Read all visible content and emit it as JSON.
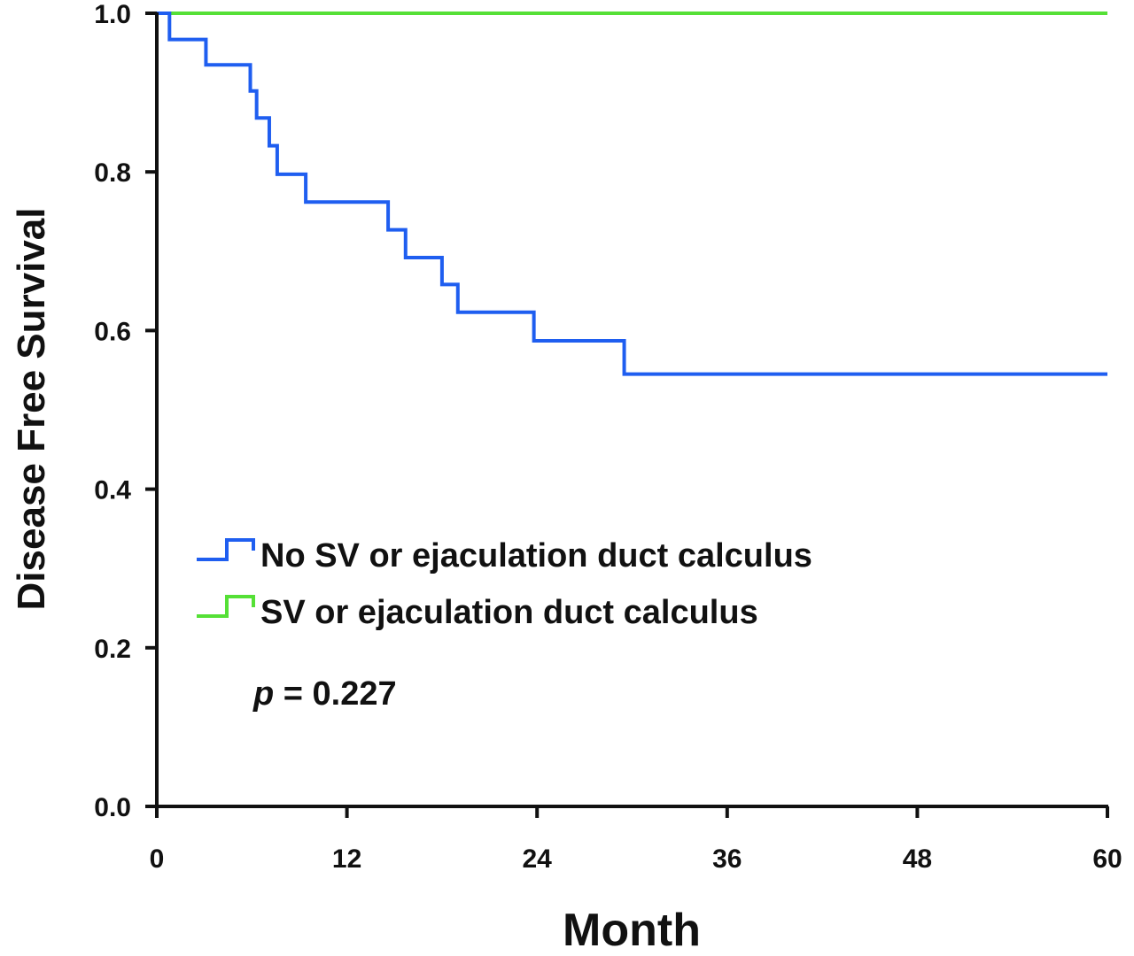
{
  "chart_data": {
    "type": "line",
    "style": "kaplan-meier step",
    "xlabel": "Month",
    "ylabel": "Disease Free Survival",
    "xlim": [
      0,
      60
    ],
    "ylim": [
      0,
      1.0
    ],
    "x_ticks": [
      "0",
      "12",
      "24",
      "36",
      "48",
      "60"
    ],
    "y_ticks": [
      "0.0",
      "0.2",
      "0.4",
      "0.6",
      "0.8",
      "1.0"
    ],
    "grid": false,
    "legend_position": "bottom-left",
    "annotation": {
      "italic": "p",
      "text": " = 0.227"
    },
    "series": [
      {
        "name": "No SV or ejaculation duct calculus",
        "color": "#1f5ef0",
        "points": [
          [
            0,
            1.0
          ],
          [
            0.8,
            0.967
          ],
          [
            3.1,
            0.935
          ],
          [
            5.9,
            0.902
          ],
          [
            6.3,
            0.868
          ],
          [
            7.1,
            0.833
          ],
          [
            7.6,
            0.797
          ],
          [
            9.4,
            0.762
          ],
          [
            14.6,
            0.727
          ],
          [
            15.7,
            0.692
          ],
          [
            18.0,
            0.658
          ],
          [
            19.0,
            0.623
          ],
          [
            23.8,
            0.587
          ],
          [
            29.5,
            0.545
          ],
          [
            60,
            0.545
          ]
        ]
      },
      {
        "name": "SV or ejaculation duct calculus",
        "color": "#55e036",
        "points": [
          [
            0,
            1.0
          ],
          [
            60,
            1.0
          ]
        ]
      }
    ]
  }
}
